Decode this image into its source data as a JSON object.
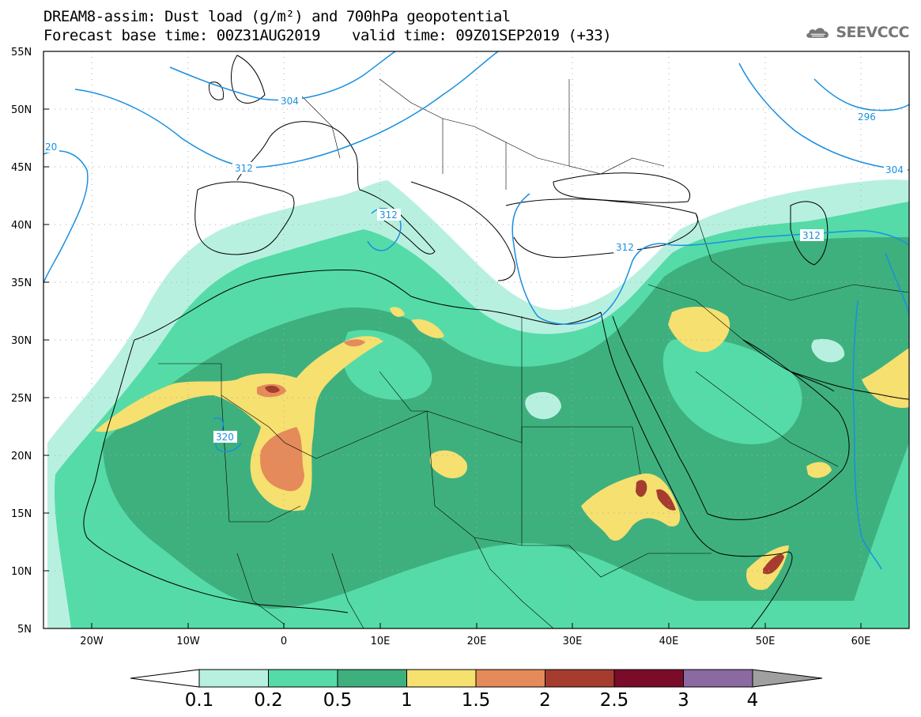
{
  "header": {
    "line1": "DREAM8-assim: Dust load (g/m²) and 700hPa geopotential",
    "base_time": "Forecast base time: 00Z31AUG2019",
    "valid_time": "valid time: 09Z01SEP2019 (+33)"
  },
  "logo": {
    "text": "SEEVCCC",
    "icon": "cloud-icon"
  },
  "map": {
    "lat_labels": [
      "55N",
      "50N",
      "45N",
      "40N",
      "35N",
      "30N",
      "25N",
      "20N",
      "15N",
      "10N",
      "5N"
    ],
    "lon_labels": [
      "20W",
      "10W",
      "0",
      "10E",
      "20E",
      "30E",
      "40E",
      "50E",
      "60E"
    ],
    "contour_labels": [
      "304",
      "20",
      "312",
      "312",
      "312",
      "312",
      "320",
      "296",
      "304"
    ]
  },
  "colorbar": {
    "colors": [
      "#b8f0e0",
      "#55dba8",
      "#3eb07e",
      "#f5e070",
      "#e58a5a",
      "#a53c2e",
      "#7a0c2a",
      "#8a6aa0"
    ],
    "labels": [
      "0.1",
      "0.2",
      "0.5",
      "1",
      "1.5",
      "2",
      "2.5",
      "3",
      "4"
    ],
    "over_color": "#a0a0a0",
    "under_color": "#ffffff"
  }
}
